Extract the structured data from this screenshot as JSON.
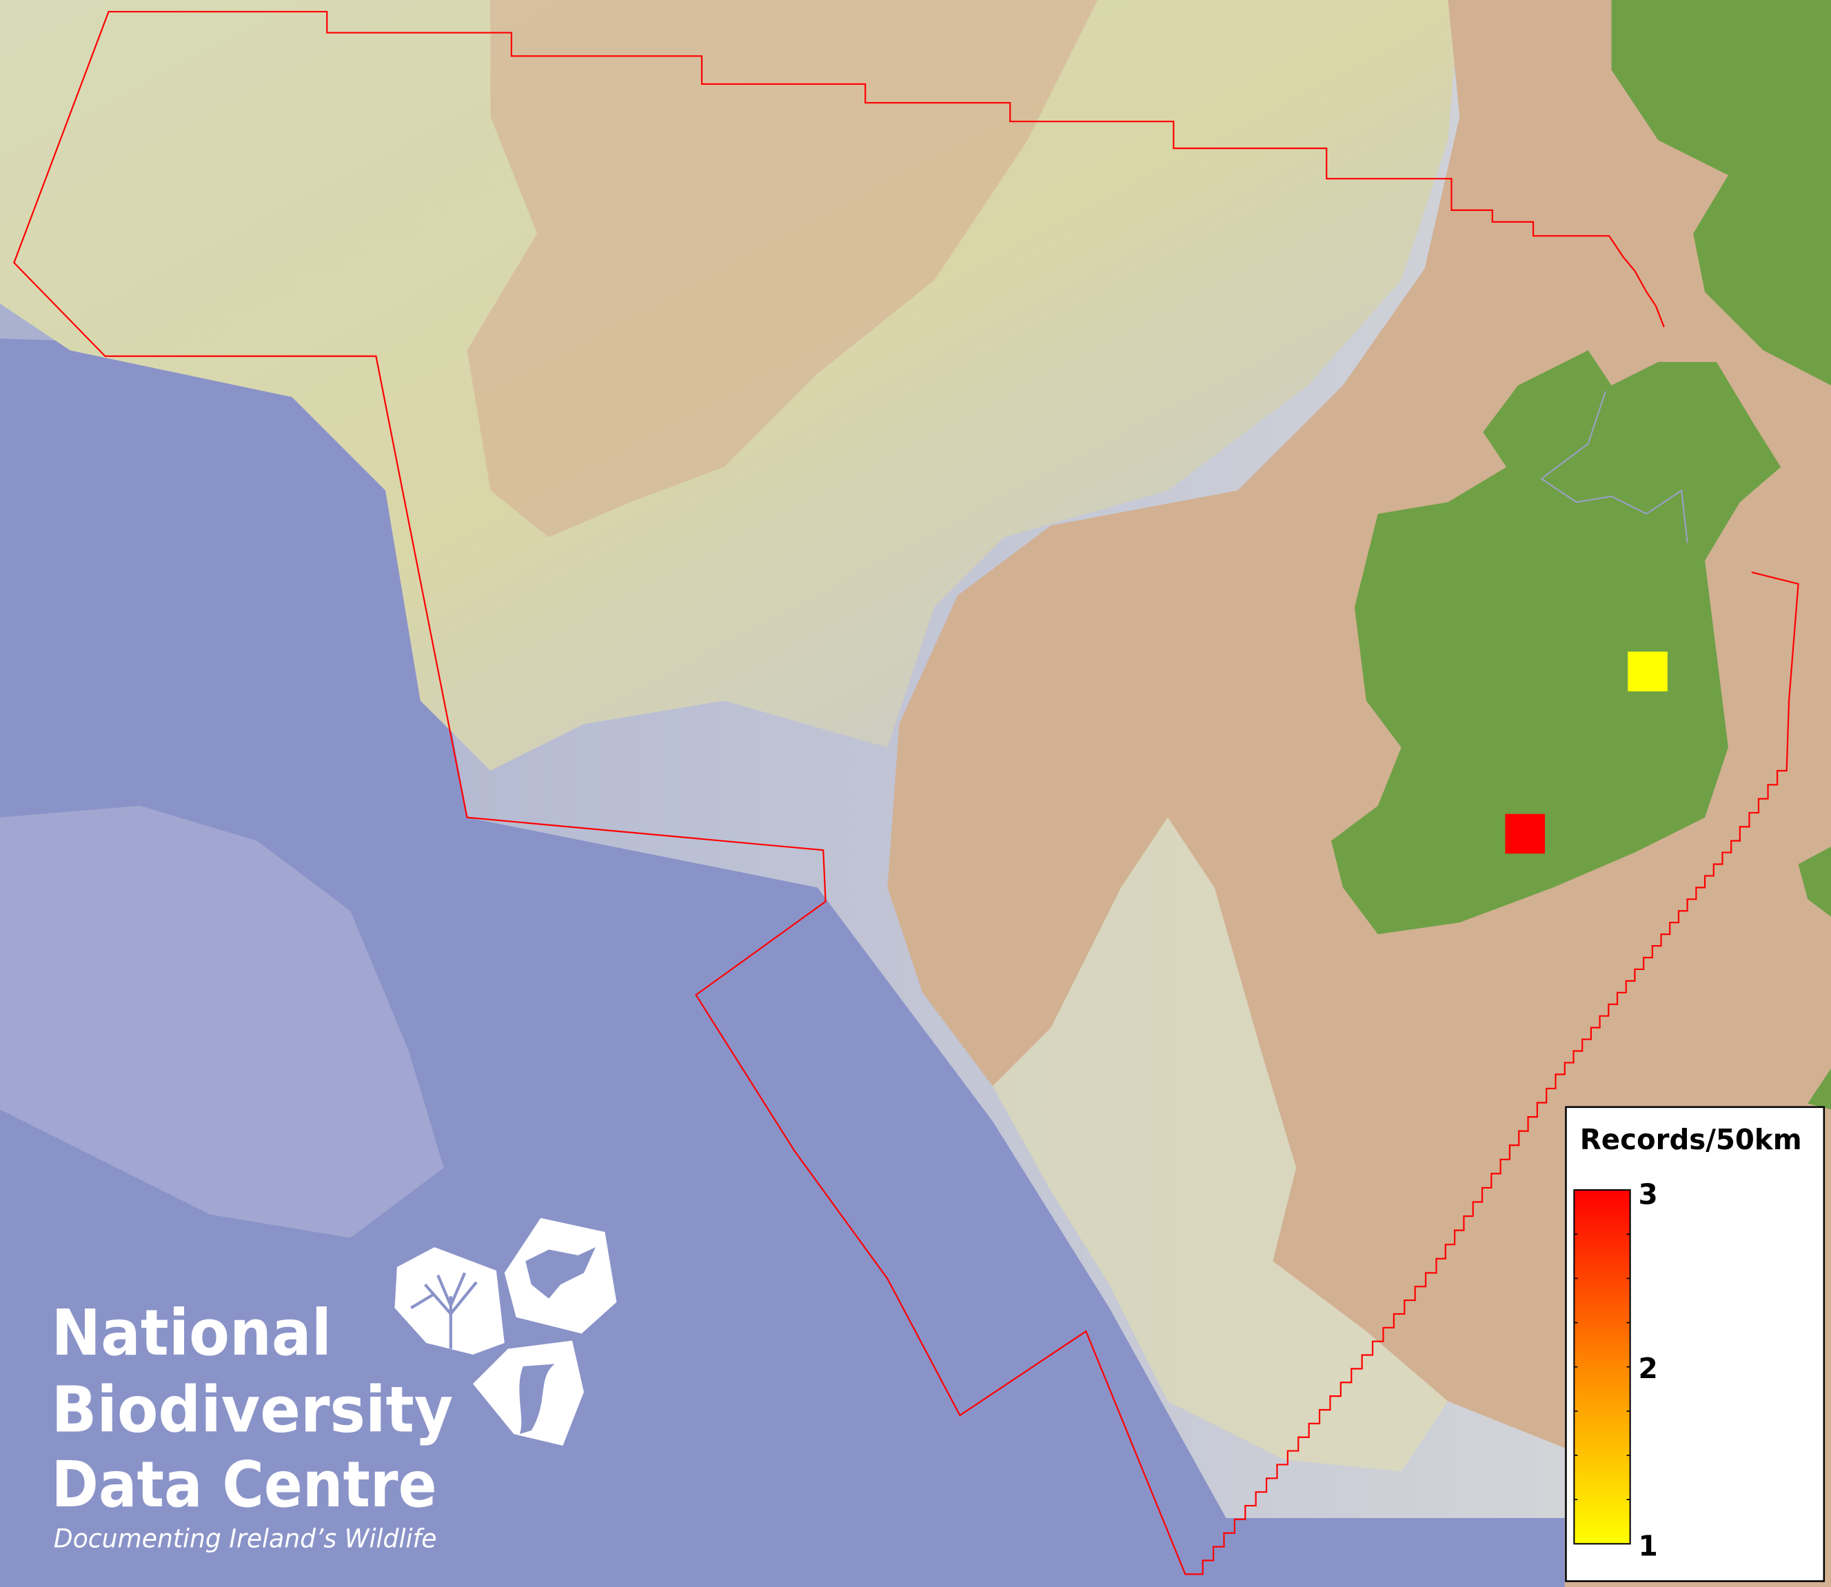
{
  "map": {
    "colors": {
      "deep_ocean": "#8a93c8",
      "shelf_slope": "#c8ccd6",
      "shallow_shelf": "#dcd8a8",
      "continental_shelf": "#d2b092",
      "land": "#6fa046",
      "boundary": "#ff0000"
    },
    "records": [
      {
        "label": "record-square-midlands",
        "value": 1,
        "color": "#ffff00"
      },
      {
        "label": "record-square-south",
        "value": 3,
        "color": "#ff0000"
      }
    ]
  },
  "legend": {
    "title": "Records/50km",
    "ticks": [
      "3",
      "2",
      "1"
    ],
    "min": 1,
    "max": 3,
    "color_min": "#ffff00",
    "color_mid": "#ff8800",
    "color_max": "#ff0000"
  },
  "logo": {
    "line1": "National",
    "line2": "Biodiversity",
    "line3": "Data Centre",
    "tagline": "Documenting Ireland’s Wildlife"
  }
}
